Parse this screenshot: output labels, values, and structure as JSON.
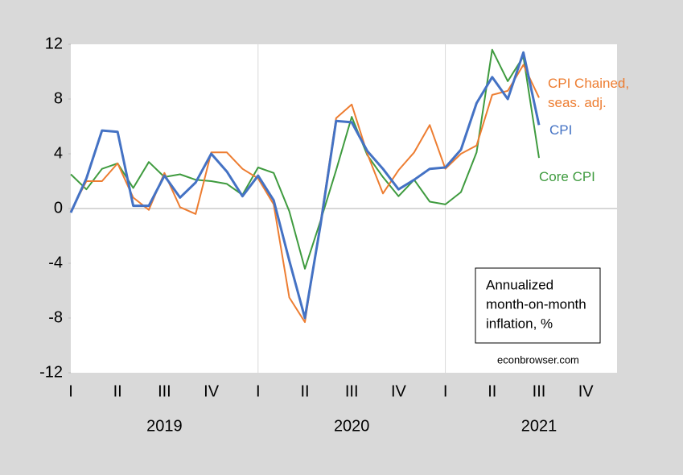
{
  "chart_data": {
    "type": "line",
    "categories": [
      "I",
      null,
      null,
      "II",
      null,
      null,
      "III",
      null,
      null,
      "IV",
      null,
      null,
      "I",
      null,
      null,
      "II",
      null,
      null,
      "III",
      null,
      null,
      "IV",
      null,
      null,
      "I",
      null,
      null,
      "II",
      null,
      null,
      "III",
      null,
      null,
      "IV",
      null,
      null
    ],
    "x_groups": [
      "2019",
      "2020",
      "2021"
    ],
    "series": [
      {
        "name": "CPI",
        "color": "#4472c4",
        "values": [
          -0.3,
          2.2,
          5.7,
          5.6,
          0.2,
          0.2,
          2.4,
          0.8,
          1.9,
          4.0,
          2.7,
          0.9,
          2.4,
          0.6,
          -3.8,
          -8.0,
          -1.2,
          6.4,
          6.3,
          4.2,
          2.9,
          1.4,
          2.1,
          2.9,
          3.0,
          4.3,
          7.7,
          9.6,
          8.0,
          11.4,
          6.1,
          null,
          null,
          null,
          null,
          null
        ]
      },
      {
        "name": "CPI Chained, seas. adj.",
        "color": "#ed7d31",
        "values": [
          -0.2,
          2.0,
          2.0,
          3.3,
          0.8,
          -0.1,
          2.6,
          0.1,
          -0.4,
          4.1,
          4.1,
          2.9,
          2.2,
          0.3,
          -6.5,
          -8.3,
          -1.0,
          6.6,
          7.6,
          4.0,
          1.1,
          2.8,
          4.1,
          6.1,
          2.9,
          4.0,
          4.6,
          8.3,
          8.6,
          10.5,
          8.1,
          null,
          null,
          null,
          null,
          null
        ]
      },
      {
        "name": "Core CPI",
        "color": "#3f9b3f",
        "values": [
          2.5,
          1.4,
          2.9,
          3.3,
          1.5,
          3.4,
          2.3,
          2.5,
          2.1,
          2.0,
          1.8,
          1.0,
          3.0,
          2.6,
          -0.2,
          -4.4,
          -0.9,
          2.8,
          6.7,
          3.9,
          2.3,
          0.9,
          2.1,
          0.5,
          0.3,
          1.2,
          4.1,
          11.6,
          9.3,
          11.1,
          3.7,
          null,
          null,
          null,
          null,
          null
        ]
      }
    ],
    "ylim": [
      -12,
      12
    ],
    "yticks": [
      12,
      8,
      4,
      0,
      -4,
      -8,
      -12
    ],
    "note": [
      "Annualized",
      "month-on-month",
      "inflation, %"
    ],
    "source": "econbrowser.com"
  }
}
